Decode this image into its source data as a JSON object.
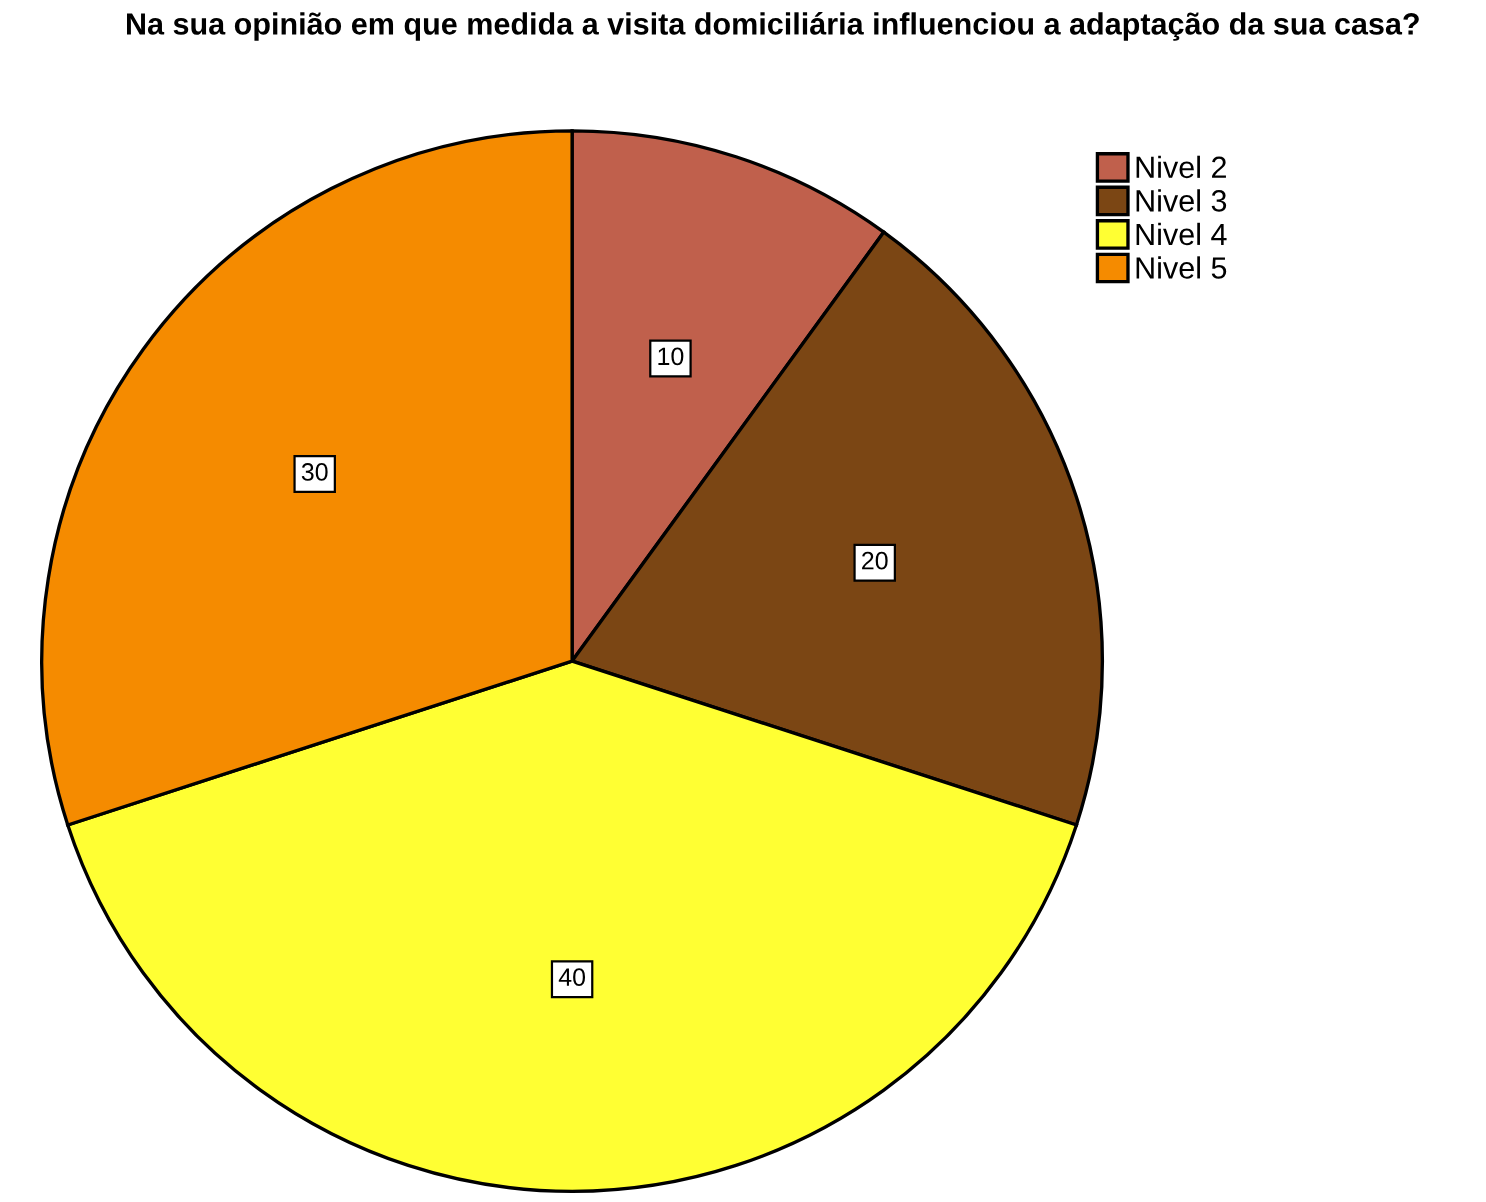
{
  "chart_data": {
    "type": "pie",
    "title": "Na sua opinião em que medida a visita domiciliária influenciou a adaptação da sua casa?",
    "categories": [
      "Nivel 2",
      "Nivel 3",
      "Nivel 4",
      "Nivel 5"
    ],
    "values": [
      10,
      20,
      40,
      30
    ],
    "colors": [
      "#c0604c",
      "#7b4614",
      "#ffff33",
      "#f58b00"
    ],
    "data_labels": true,
    "legend": "top right"
  }
}
